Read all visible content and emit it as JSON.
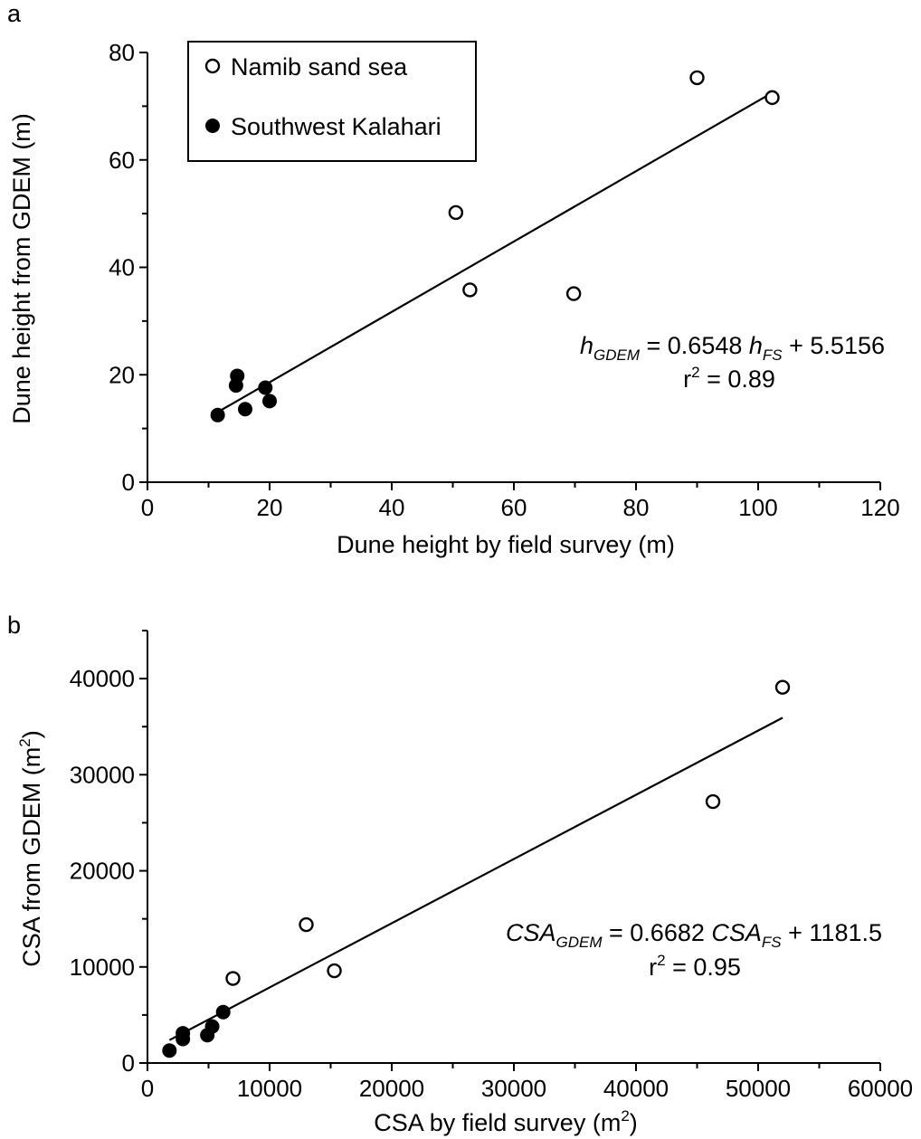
{
  "chart_data": [
    {
      "panel": "a",
      "type": "scatter",
      "xlabel": "Dune height by field survey (m)",
      "ylabel": "Dune height from GDEM (m)",
      "xlim": [
        0,
        120
      ],
      "ylim": [
        0,
        80
      ],
      "xticks": [
        0,
        20,
        40,
        60,
        80,
        100,
        120
      ],
      "yticks": [
        0,
        20,
        40,
        60,
        80
      ],
      "xtick_labels": [
        "0",
        "20",
        "40",
        "60",
        "80",
        "100",
        "120"
      ],
      "ytick_labels": [
        "0",
        "20",
        "40",
        "60",
        "80"
      ],
      "legend": {
        "placement": "top-left",
        "entries": [
          "Namib sand sea",
          "Southwest Kalahari"
        ]
      },
      "series": [
        {
          "name": "Namib sand sea",
          "marker": "open-circle",
          "x": [
            50.5,
            52.8,
            69.8,
            90.0,
            102.3
          ],
          "y": [
            50.2,
            35.8,
            35.1,
            75.3,
            71.6
          ]
        },
        {
          "name": "Southwest Kalahari",
          "marker": "filled-circle",
          "x": [
            11.5,
            14.5,
            14.7,
            16.0,
            19.3,
            20.0
          ],
          "y": [
            12.5,
            18.0,
            19.8,
            13.6,
            17.6,
            15.1
          ]
        }
      ],
      "fit": {
        "slope": 0.6548,
        "intercept": 5.5156,
        "x_range": [
          10.8,
          102.3
        ],
        "equation": {
          "lhs_main": "h",
          "lhs_sub": "GDEM",
          "mid": " = 0.6548 ",
          "rhs_main": "h",
          "rhs_sub": "FS",
          "tail": " + 5.5156"
        },
        "r2": {
          "label": "r",
          "sup": "2",
          "value": " = 0.89"
        }
      }
    },
    {
      "panel": "b",
      "type": "scatter",
      "xlabel": "CSA by field survey (m",
      "xlabel_sup": "2",
      "xlabel_tail": ")",
      "ylabel": "CSA from GDEM (m",
      "ylabel_sup": "2",
      "ylabel_tail": ")",
      "xlim": [
        0,
        60000
      ],
      "ylim": [
        0,
        45000
      ],
      "xticks": [
        0,
        10000,
        20000,
        30000,
        40000,
        50000,
        60000
      ],
      "yticks": [
        0,
        10000,
        20000,
        30000,
        40000
      ],
      "xtick_labels": [
        "0",
        "10000",
        "20000",
        "30000",
        "40000",
        "50000",
        "60000"
      ],
      "ytick_labels": [
        "0",
        "10000",
        "20000",
        "30000",
        "40000"
      ],
      "series": [
        {
          "name": "Namib sand sea",
          "marker": "open-circle",
          "x": [
            7000,
            13000,
            15300,
            46300,
            52000
          ],
          "y": [
            8800,
            14400,
            9600,
            27200,
            39100
          ]
        },
        {
          "name": "Southwest Kalahari",
          "marker": "filled-circle",
          "x": [
            1800,
            2900,
            2900,
            4900,
            5300,
            6200
          ],
          "y": [
            1300,
            3100,
            2500,
            2900,
            3800,
            5300
          ]
        }
      ],
      "fit": {
        "slope": 0.6682,
        "intercept": 1181.5,
        "x_range": [
          1800,
          52000
        ],
        "equation": {
          "lhs_main": "CSA",
          "lhs_sub": "GDEM",
          "mid": " = 0.6682 ",
          "rhs_main": "CSA",
          "rhs_sub": "FS",
          "tail": " + 1181.5"
        },
        "r2": {
          "label": "r",
          "sup": "2",
          "value": " = 0.95"
        }
      }
    }
  ]
}
